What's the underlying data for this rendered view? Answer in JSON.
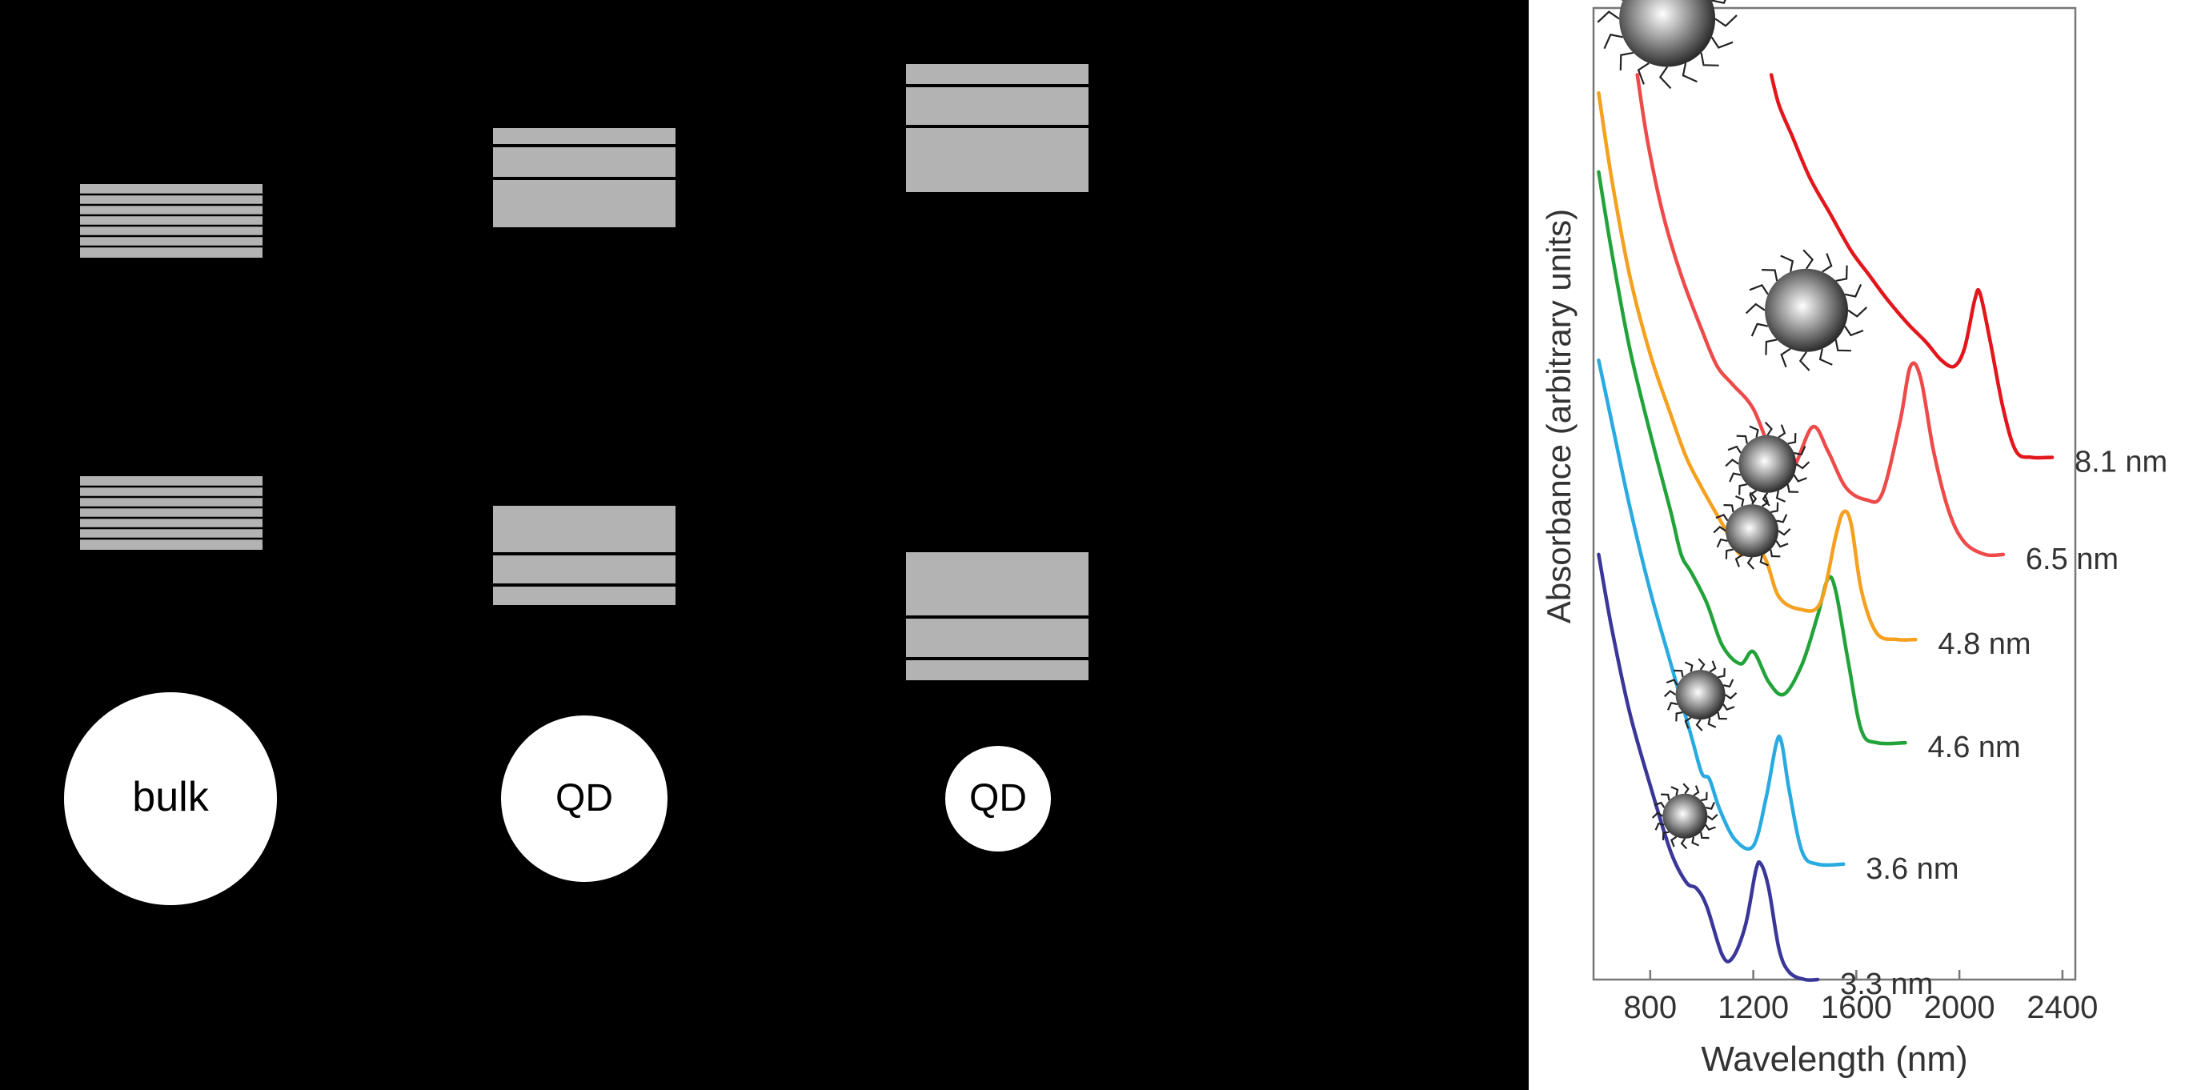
{
  "diagram": {
    "band_color": "#b3b3b3",
    "particle_color": "#ffffff",
    "particles": [
      {
        "label": "bulk"
      },
      {
        "label": "QD"
      },
      {
        "label": "QD"
      }
    ]
  },
  "chart_data": {
    "type": "line",
    "title": "",
    "xlabel": "Wavelength (nm)",
    "ylabel": "Absorbance (arbitrary units)",
    "xlim": [
      580,
      2450
    ],
    "ylim": [
      0,
      8
    ],
    "xticks": [
      800,
      1200,
      1600,
      2000,
      2400
    ],
    "xtick_labels": [
      "800",
      "1200",
      "1600",
      "2000",
      "2400"
    ],
    "grid": false,
    "series": [
      {
        "name": "3.3 nm",
        "color": "#3b3799",
        "points": [
          [
            600,
            3.5
          ],
          [
            650,
            2.9
          ],
          [
            720,
            2.2
          ],
          [
            800,
            1.6
          ],
          [
            880,
            1.05
          ],
          [
            940,
            0.8
          ],
          [
            980,
            0.75
          ],
          [
            1020,
            0.6
          ],
          [
            1080,
            0.2
          ],
          [
            1120,
            0.18
          ],
          [
            1170,
            0.45
          ],
          [
            1210,
            0.9
          ],
          [
            1230,
            0.95
          ],
          [
            1260,
            0.75
          ],
          [
            1300,
            0.25
          ],
          [
            1340,
            0.06
          ],
          [
            1400,
            0.0
          ],
          [
            1450,
            0.0
          ]
        ]
      },
      {
        "name": "3.6 nm",
        "color": "#29abe2",
        "points": [
          [
            600,
            5.1
          ],
          [
            650,
            4.6
          ],
          [
            720,
            3.9
          ],
          [
            800,
            3.2
          ],
          [
            880,
            2.6
          ],
          [
            960,
            2.0
          ],
          [
            1000,
            1.7
          ],
          [
            1030,
            1.65
          ],
          [
            1070,
            1.4
          ],
          [
            1130,
            1.15
          ],
          [
            1200,
            1.1
          ],
          [
            1250,
            1.5
          ],
          [
            1290,
            1.95
          ],
          [
            1310,
            1.95
          ],
          [
            1340,
            1.55
          ],
          [
            1390,
            1.05
          ],
          [
            1450,
            0.95
          ],
          [
            1550,
            0.95
          ]
        ]
      },
      {
        "name": "4.6 nm",
        "color": "#22a33a",
        "points": [
          [
            600,
            6.65
          ],
          [
            650,
            6.0
          ],
          [
            720,
            5.2
          ],
          [
            800,
            4.5
          ],
          [
            880,
            3.85
          ],
          [
            920,
            3.5
          ],
          [
            960,
            3.35
          ],
          [
            1020,
            3.1
          ],
          [
            1080,
            2.75
          ],
          [
            1150,
            2.6
          ],
          [
            1200,
            2.7
          ],
          [
            1260,
            2.45
          ],
          [
            1320,
            2.35
          ],
          [
            1390,
            2.6
          ],
          [
            1450,
            3.0
          ],
          [
            1490,
            3.3
          ],
          [
            1520,
            3.2
          ],
          [
            1570,
            2.6
          ],
          [
            1620,
            2.05
          ],
          [
            1680,
            1.95
          ],
          [
            1790,
            1.95
          ]
        ]
      },
      {
        "name": "4.8 nm",
        "color": "#f5a01e",
        "points": [
          [
            600,
            7.3
          ],
          [
            650,
            6.6
          ],
          [
            720,
            5.8
          ],
          [
            800,
            5.15
          ],
          [
            880,
            4.65
          ],
          [
            940,
            4.3
          ],
          [
            1000,
            4.05
          ],
          [
            1080,
            3.75
          ],
          [
            1150,
            3.5
          ],
          [
            1200,
            3.6
          ],
          [
            1250,
            3.45
          ],
          [
            1300,
            3.15
          ],
          [
            1380,
            3.05
          ],
          [
            1460,
            3.1
          ],
          [
            1520,
            3.65
          ],
          [
            1550,
            3.85
          ],
          [
            1580,
            3.75
          ],
          [
            1620,
            3.2
          ],
          [
            1680,
            2.85
          ],
          [
            1760,
            2.8
          ],
          [
            1830,
            2.8
          ]
        ]
      },
      {
        "name": "6.5 nm",
        "color": "#ee4a4a",
        "points": [
          [
            750,
            7.45
          ],
          [
            790,
            6.9
          ],
          [
            850,
            6.3
          ],
          [
            920,
            5.8
          ],
          [
            1000,
            5.35
          ],
          [
            1060,
            5.05
          ],
          [
            1120,
            4.9
          ],
          [
            1200,
            4.7
          ],
          [
            1280,
            4.3
          ],
          [
            1350,
            4.2
          ],
          [
            1430,
            4.55
          ],
          [
            1490,
            4.35
          ],
          [
            1560,
            4.05
          ],
          [
            1640,
            3.95
          ],
          [
            1700,
            4.0
          ],
          [
            1770,
            4.6
          ],
          [
            1810,
            5.05
          ],
          [
            1850,
            4.95
          ],
          [
            1900,
            4.35
          ],
          [
            1960,
            3.85
          ],
          [
            2020,
            3.6
          ],
          [
            2100,
            3.5
          ],
          [
            2170,
            3.5
          ]
        ]
      },
      {
        "name": "8.1 nm",
        "color": "#e3161b",
        "points": [
          [
            1270,
            7.45
          ],
          [
            1300,
            7.2
          ],
          [
            1350,
            6.95
          ],
          [
            1420,
            6.6
          ],
          [
            1500,
            6.3
          ],
          [
            1580,
            6.0
          ],
          [
            1650,
            5.8
          ],
          [
            1720,
            5.6
          ],
          [
            1800,
            5.4
          ],
          [
            1870,
            5.25
          ],
          [
            1930,
            5.1
          ],
          [
            1980,
            5.05
          ],
          [
            2020,
            5.2
          ],
          [
            2060,
            5.6
          ],
          [
            2080,
            5.65
          ],
          [
            2120,
            5.25
          ],
          [
            2170,
            4.7
          ],
          [
            2220,
            4.35
          ],
          [
            2280,
            4.3
          ],
          [
            2360,
            4.3
          ]
        ]
      }
    ]
  }
}
